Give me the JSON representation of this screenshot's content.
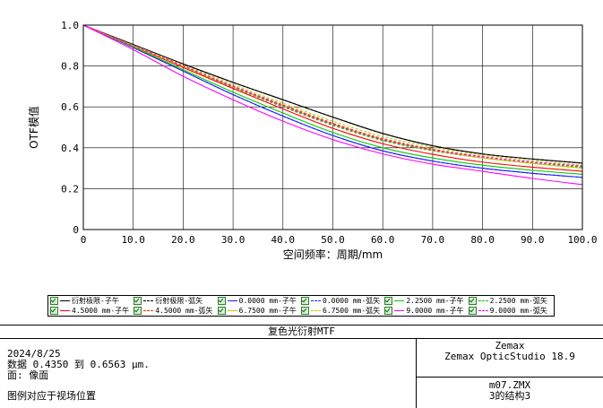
{
  "chart_data": {
    "type": "line",
    "title": "",
    "xlabel": "空间频率：周期/mm",
    "ylabel": "OTF模值",
    "xlim": [
      0,
      100
    ],
    "ylim": [
      0,
      1
    ],
    "x_ticks": [
      "0",
      "10.0",
      "20.0",
      "30.0",
      "40.0",
      "50.0",
      "60.0",
      "70.0",
      "80.0",
      "90.0",
      "100.0"
    ],
    "y_ticks": [
      "0",
      "0.2",
      "0.4",
      "0.6",
      "0.8",
      "1.0"
    ],
    "grid": true,
    "legend_position": "bottom",
    "x": [
      0,
      10,
      20,
      30,
      40,
      50,
      60,
      70,
      80,
      90,
      100
    ],
    "series": [
      {
        "name": "衍射极限-子午",
        "color": "#000000",
        "dash": "solid",
        "values": [
          1.0,
          0.905,
          0.81,
          0.72,
          0.635,
          0.55,
          0.47,
          0.41,
          0.37,
          0.345,
          0.325
        ]
      },
      {
        "name": "衍射极限-弧矢",
        "color": "#000000",
        "dash": "dashed",
        "values": [
          1.0,
          0.905,
          0.81,
          0.72,
          0.635,
          0.55,
          0.47,
          0.41,
          0.37,
          0.345,
          0.325
        ]
      },
      {
        "name": "0.0000 mm-子午",
        "color": "#2020ff",
        "dash": "solid",
        "values": [
          1.0,
          0.89,
          0.775,
          0.66,
          0.555,
          0.46,
          0.385,
          0.335,
          0.3,
          0.275,
          0.255
        ]
      },
      {
        "name": "0.0000 mm-弧矢",
        "color": "#2020ff",
        "dash": "dashed",
        "values": [
          1.0,
          0.89,
          0.775,
          0.66,
          0.555,
          0.46,
          0.385,
          0.335,
          0.3,
          0.275,
          0.255
        ]
      },
      {
        "name": "2.2500 mm-子午",
        "color": "#00cc00",
        "dash": "solid",
        "values": [
          1.0,
          0.893,
          0.782,
          0.672,
          0.57,
          0.475,
          0.4,
          0.35,
          0.315,
          0.29,
          0.27
        ]
      },
      {
        "name": "2.2500 mm-弧矢",
        "color": "#00cc00",
        "dash": "dashed",
        "values": [
          1.0,
          0.898,
          0.795,
          0.695,
          0.6,
          0.51,
          0.435,
          0.385,
          0.35,
          0.325,
          0.305
        ]
      },
      {
        "name": "4.5000 mm-子午",
        "color": "#ff0000",
        "dash": "solid",
        "values": [
          1.0,
          0.897,
          0.792,
          0.69,
          0.59,
          0.495,
          0.42,
          0.368,
          0.33,
          0.305,
          0.285
        ]
      },
      {
        "name": "4.5000 mm-弧矢",
        "color": "#d04000",
        "dash": "dashed",
        "values": [
          1.0,
          0.9,
          0.8,
          0.702,
          0.61,
          0.52,
          0.445,
          0.393,
          0.357,
          0.33,
          0.31
        ]
      },
      {
        "name": "6.7500 mm-子午",
        "color": "#c8c800",
        "dash": "solid",
        "values": [
          1.0,
          0.898,
          0.797,
          0.698,
          0.605,
          0.515,
          0.44,
          0.388,
          0.35,
          0.323,
          0.3
        ]
      },
      {
        "name": "6.7500 mm-弧矢",
        "color": "#c8c800",
        "dash": "dashed",
        "values": [
          1.0,
          0.902,
          0.805,
          0.71,
          0.618,
          0.53,
          0.455,
          0.403,
          0.365,
          0.337,
          0.315
        ]
      },
      {
        "name": "9.0000 mm-子午",
        "color": "#ff00ff",
        "dash": "solid",
        "values": [
          1.0,
          0.88,
          0.75,
          0.635,
          0.53,
          0.44,
          0.37,
          0.32,
          0.285,
          0.25,
          0.22
        ]
      },
      {
        "name": "9.0000 mm-弧矢",
        "color": "#ff00ff",
        "dash": "dashed",
        "values": [
          1.0,
          0.9,
          0.8,
          0.7,
          0.605,
          0.515,
          0.44,
          0.39,
          0.355,
          0.33,
          0.31
        ]
      }
    ]
  },
  "info": {
    "title": "复色光衍射MTF",
    "date": "2024/8/25",
    "data_line": "数据 0.4350 到 0.6563 μm.",
    "surface_line": "面: 像面",
    "legend_note": "图例对应于视场位置",
    "company": "Zemax",
    "product": "Zemax OpticStudio 18.9",
    "file": "m07.ZMX",
    "config": "3的结构3"
  }
}
